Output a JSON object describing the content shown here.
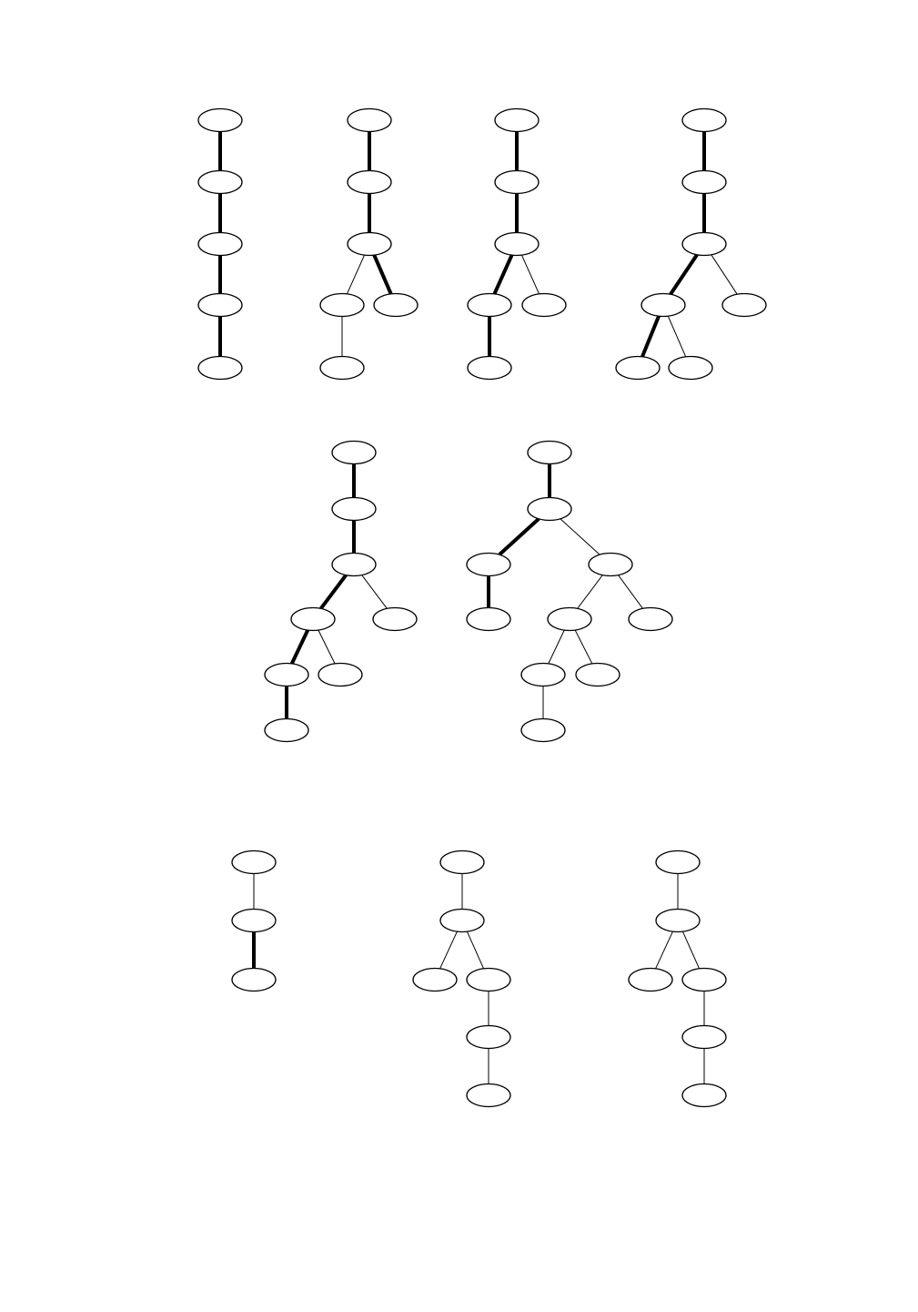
{
  "colors": {
    "background": "#ffffff",
    "stroke": "#000000",
    "node_fill": "#ffffff"
  },
  "diagram": {
    "description_type": "rooted-tree-figure",
    "groups": [
      {
        "id": "row1",
        "trees": [
          {
            "id": "tree-1",
            "nodes": [
              "n1",
              "n2",
              "n3",
              "n4",
              "n5"
            ],
            "edges": [
              {
                "from": "n1",
                "to": "n2",
                "weight": "thick"
              },
              {
                "from": "n2",
                "to": "n3",
                "weight": "thick"
              },
              {
                "from": "n3",
                "to": "n4",
                "weight": "thick"
              },
              {
                "from": "n4",
                "to": "n5",
                "weight": "thick"
              }
            ]
          },
          {
            "id": "tree-2",
            "nodes": [
              "n1",
              "n2",
              "n3",
              "n4",
              "n5",
              "n6"
            ],
            "edges": [
              {
                "from": "n1",
                "to": "n2",
                "weight": "thick"
              },
              {
                "from": "n2",
                "to": "n3",
                "weight": "thick"
              },
              {
                "from": "n3",
                "to": "n4",
                "weight": "thin"
              },
              {
                "from": "n3",
                "to": "n5",
                "weight": "thick"
              },
              {
                "from": "n4",
                "to": "n6",
                "weight": "thin"
              }
            ]
          },
          {
            "id": "tree-3",
            "nodes": [
              "n1",
              "n2",
              "n3",
              "n4",
              "n5",
              "n6"
            ],
            "edges": [
              {
                "from": "n1",
                "to": "n2",
                "weight": "thick"
              },
              {
                "from": "n2",
                "to": "n3",
                "weight": "thick"
              },
              {
                "from": "n3",
                "to": "n4",
                "weight": "thick"
              },
              {
                "from": "n3",
                "to": "n5",
                "weight": "thin"
              },
              {
                "from": "n4",
                "to": "n6",
                "weight": "thick"
              }
            ]
          },
          {
            "id": "tree-4",
            "nodes": [
              "n1",
              "n2",
              "n3",
              "n4",
              "n5",
              "n6",
              "n7"
            ],
            "edges": [
              {
                "from": "n1",
                "to": "n2",
                "weight": "thick"
              },
              {
                "from": "n2",
                "to": "n3",
                "weight": "thick"
              },
              {
                "from": "n3",
                "to": "n4",
                "weight": "thick"
              },
              {
                "from": "n3",
                "to": "n5",
                "weight": "thin"
              },
              {
                "from": "n4",
                "to": "n6",
                "weight": "thick"
              },
              {
                "from": "n4",
                "to": "n7",
                "weight": "thin"
              }
            ]
          }
        ]
      },
      {
        "id": "row2",
        "trees": [
          {
            "id": "tree-5",
            "nodes": [
              "n1",
              "n2",
              "n3",
              "n4",
              "n5",
              "n6",
              "n7",
              "n8"
            ],
            "edges": [
              {
                "from": "n1",
                "to": "n2",
                "weight": "thick"
              },
              {
                "from": "n2",
                "to": "n3",
                "weight": "thick"
              },
              {
                "from": "n3",
                "to": "n4",
                "weight": "thick"
              },
              {
                "from": "n3",
                "to": "n5",
                "weight": "thin"
              },
              {
                "from": "n4",
                "to": "n6",
                "weight": "thick"
              },
              {
                "from": "n4",
                "to": "n7",
                "weight": "thin"
              },
              {
                "from": "n6",
                "to": "n8",
                "weight": "thick"
              }
            ]
          },
          {
            "id": "tree-6",
            "nodes": [
              "n1",
              "n2",
              "n3",
              "n4",
              "n5",
              "n6",
              "n7",
              "n8",
              "n9",
              "n10"
            ],
            "edges": [
              {
                "from": "n1",
                "to": "n2",
                "weight": "thick"
              },
              {
                "from": "n2",
                "to": "n3",
                "weight": "thick"
              },
              {
                "from": "n2",
                "to": "n4",
                "weight": "thin"
              },
              {
                "from": "n3",
                "to": "n5",
                "weight": "thick"
              },
              {
                "from": "n4",
                "to": "n6",
                "weight": "thin"
              },
              {
                "from": "n4",
                "to": "n7",
                "weight": "thin"
              },
              {
                "from": "n6",
                "to": "n8",
                "weight": "thin"
              },
              {
                "from": "n6",
                "to": "n9",
                "weight": "thin"
              },
              {
                "from": "n8",
                "to": "n10",
                "weight": "thin"
              }
            ]
          }
        ]
      },
      {
        "id": "row3",
        "trees": [
          {
            "id": "tree-7",
            "nodes": [
              "n1",
              "n2",
              "n3"
            ],
            "edges": [
              {
                "from": "n1",
                "to": "n2",
                "weight": "thin"
              },
              {
                "from": "n2",
                "to": "n3",
                "weight": "thick"
              }
            ]
          },
          {
            "id": "tree-8",
            "nodes": [
              "n1",
              "n2",
              "n3",
              "n4",
              "n5",
              "n6"
            ],
            "edges": [
              {
                "from": "n1",
                "to": "n2",
                "weight": "thin"
              },
              {
                "from": "n2",
                "to": "n3",
                "weight": "thin"
              },
              {
                "from": "n2",
                "to": "n4",
                "weight": "thin"
              },
              {
                "from": "n4",
                "to": "n5",
                "weight": "thin"
              },
              {
                "from": "n5",
                "to": "n6",
                "weight": "thin"
              }
            ]
          },
          {
            "id": "tree-9",
            "nodes": [
              "n1",
              "n2",
              "n3",
              "n4",
              "n5",
              "n6"
            ],
            "edges": [
              {
                "from": "n1",
                "to": "n2",
                "weight": "thin"
              },
              {
                "from": "n2",
                "to": "n3",
                "weight": "thin"
              },
              {
                "from": "n2",
                "to": "n4",
                "weight": "thin"
              },
              {
                "from": "n4",
                "to": "n5",
                "weight": "thin"
              },
              {
                "from": "n5",
                "to": "n6",
                "weight": "thin"
              }
            ]
          }
        ]
      }
    ]
  }
}
